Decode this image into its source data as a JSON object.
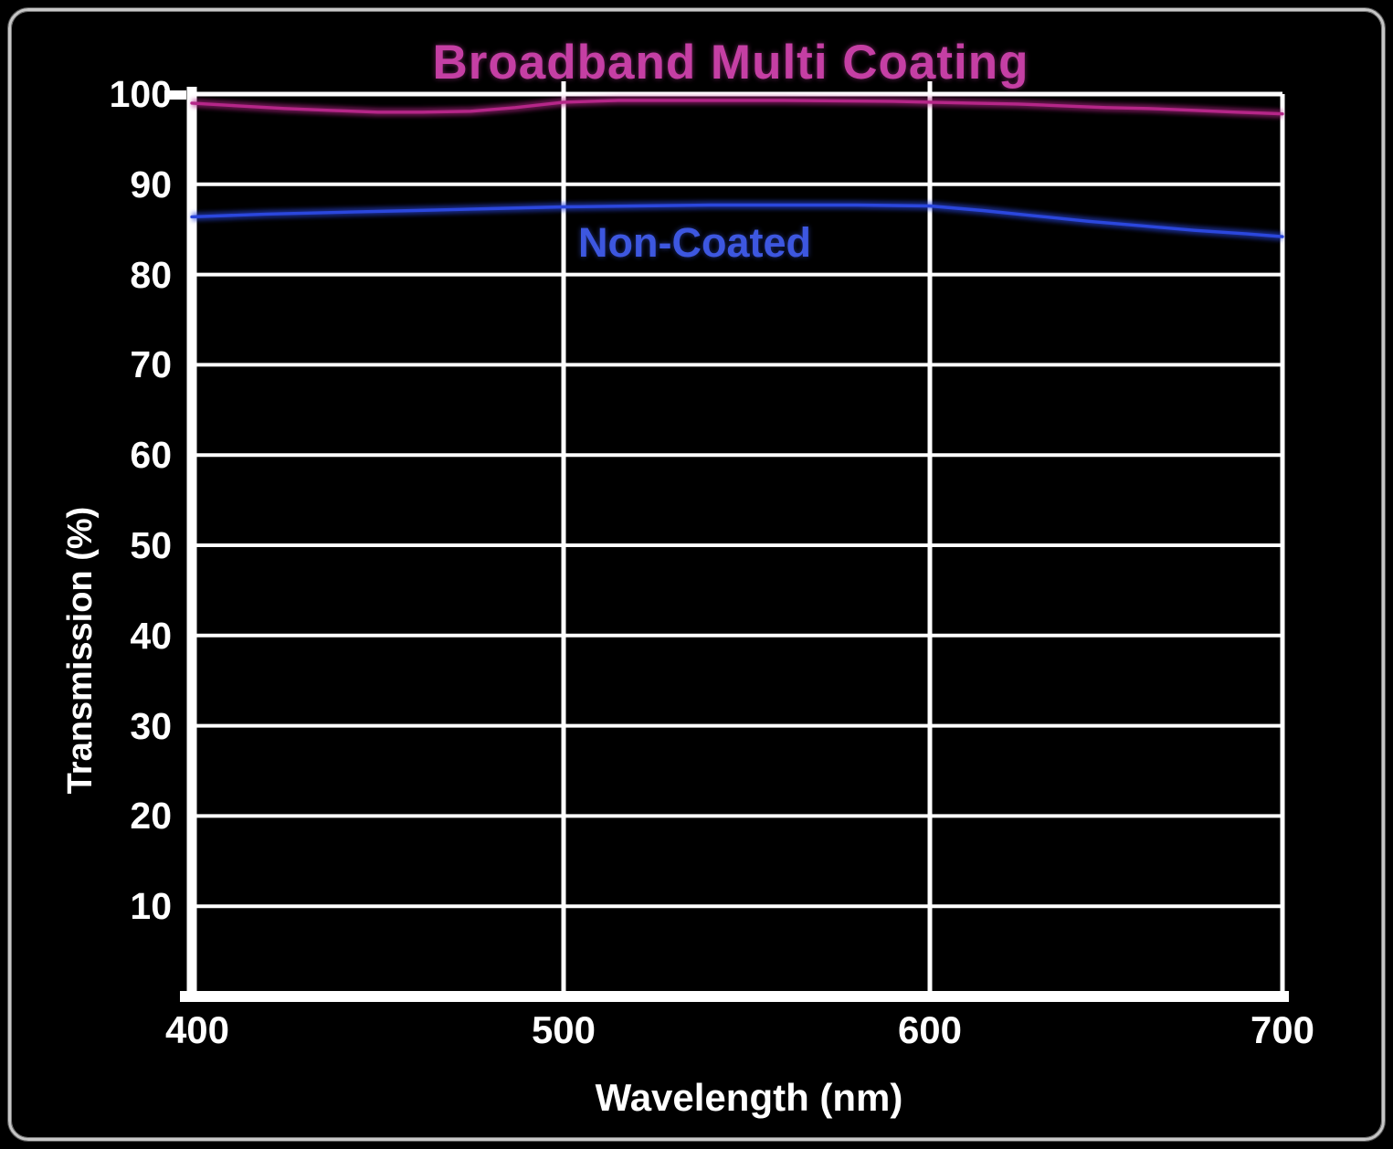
{
  "colors": {
    "background": "#000000",
    "frame": "#c6c6c6",
    "axis": "#ffffff",
    "title": "#c53fa4",
    "coated_line": "#b52688",
    "noncoated_line": "#2b47dd",
    "noncoated_label": "#3d57e0"
  },
  "chart_data": {
    "type": "line",
    "title": "Broadband Multi Coating",
    "xlabel": "Wavelength (nm)",
    "ylabel": "Transmission (%)",
    "xlim": [
      400,
      700
    ],
    "ylim": [
      0,
      100
    ],
    "grid": true,
    "x_ticks": [
      400,
      500,
      600,
      700
    ],
    "y_ticks": [
      100,
      90,
      80,
      70,
      60,
      50,
      40,
      30,
      20,
      10
    ],
    "x_gridlines": [
      500,
      600
    ],
    "legend_position": "in-plot text labels",
    "series": [
      {
        "name": "Broadband Multi Coating",
        "color": "#b52688",
        "x": [
          400,
          412,
          425,
          437,
          450,
          462,
          475,
          487,
          500,
          515,
          530,
          545,
          560,
          575,
          590,
          600,
          612,
          625,
          637,
          650,
          662,
          675,
          687,
          700
        ],
        "y": [
          99.0,
          98.7,
          98.4,
          98.2,
          98.0,
          98.0,
          98.1,
          98.5,
          99.1,
          99.3,
          99.3,
          99.3,
          99.3,
          99.25,
          99.2,
          99.1,
          99.0,
          98.9,
          98.7,
          98.5,
          98.4,
          98.2,
          98.0,
          97.8
        ]
      },
      {
        "name": "Non-Coated",
        "color": "#2b47dd",
        "x": [
          400,
          420,
          440,
          460,
          480,
          500,
          520,
          540,
          560,
          580,
          600,
          615,
          630,
          645,
          660,
          675,
          690,
          700
        ],
        "y": [
          86.4,
          86.7,
          86.9,
          87.1,
          87.3,
          87.5,
          87.6,
          87.7,
          87.7,
          87.7,
          87.6,
          87.1,
          86.5,
          85.9,
          85.4,
          84.9,
          84.5,
          84.2
        ]
      }
    ]
  }
}
